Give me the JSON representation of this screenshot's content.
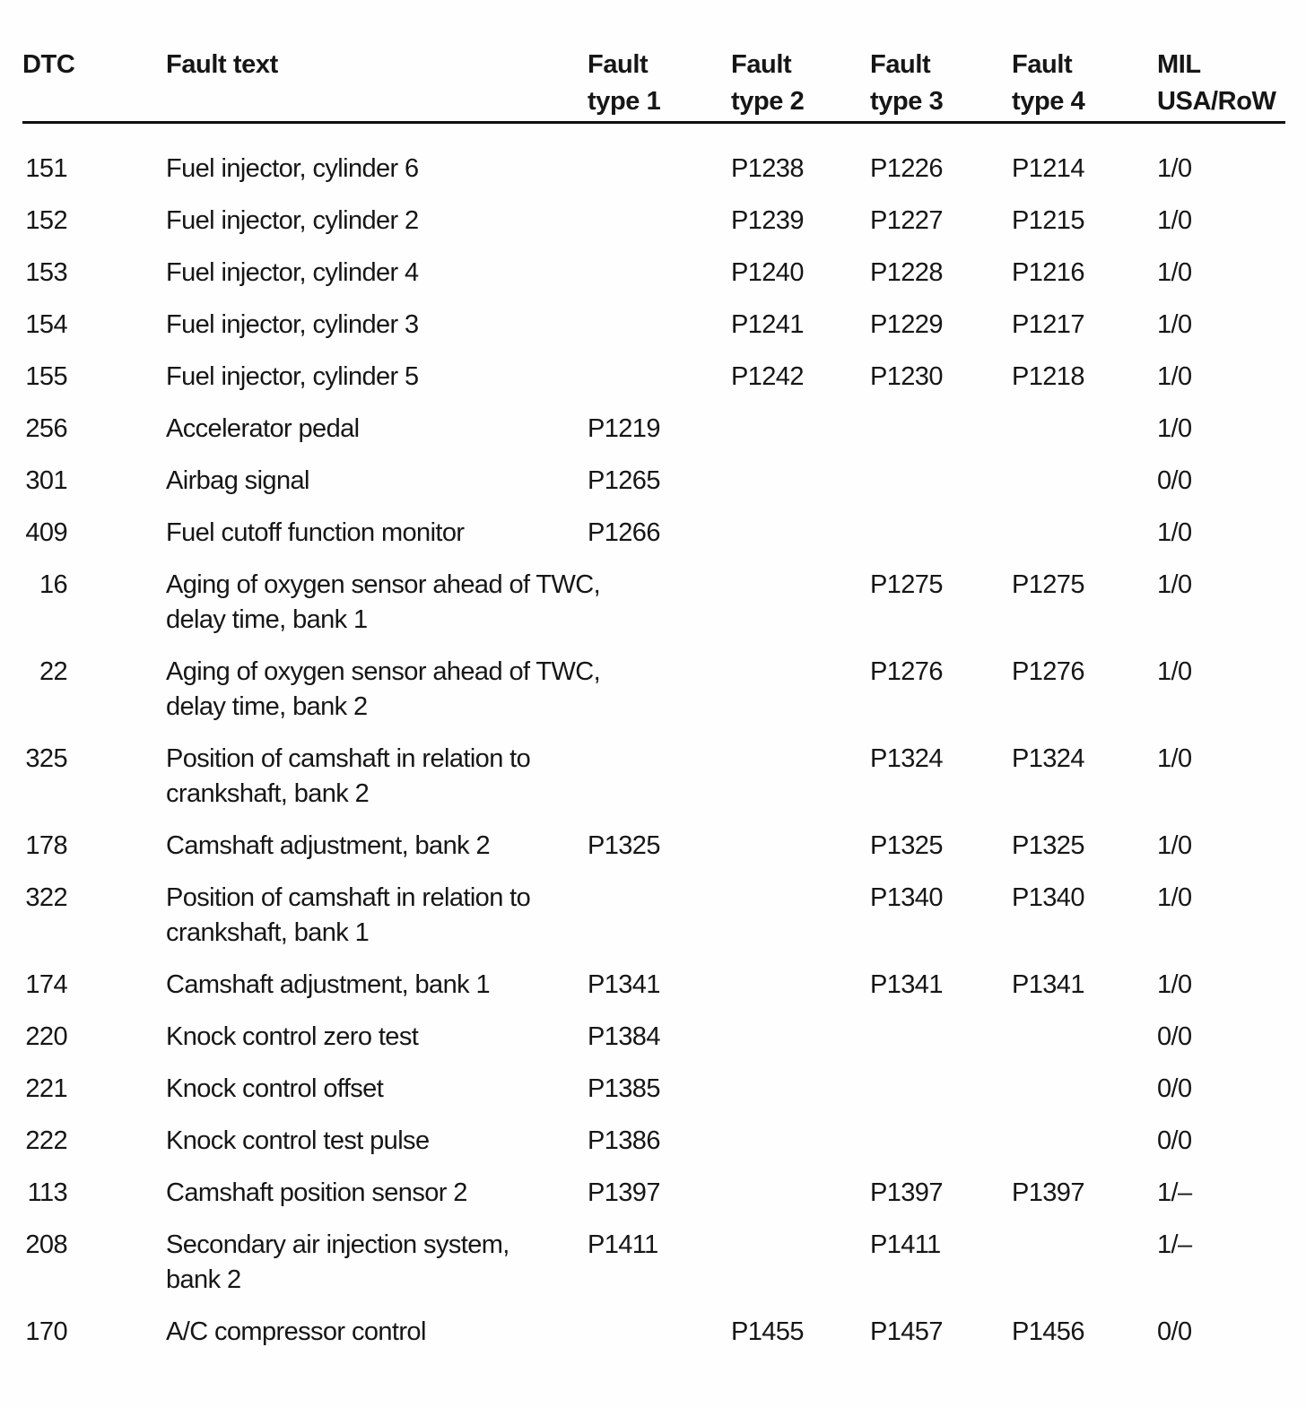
{
  "document": {
    "kind": "scanned-dtc-fault-code-table",
    "ink_color": "#161616",
    "paper_color": "#fefefe"
  },
  "table": {
    "columns": [
      {
        "id": "dtc",
        "label": [
          "DTC"
        ]
      },
      {
        "id": "text",
        "label": [
          "Fault text"
        ]
      },
      {
        "id": "type1",
        "label": [
          "Fault",
          "type 1"
        ]
      },
      {
        "id": "type2",
        "label": [
          "Fault",
          "type 2"
        ]
      },
      {
        "id": "type3",
        "label": [
          "Fault",
          "type 3"
        ]
      },
      {
        "id": "type4",
        "label": [
          "Fault",
          "type 4"
        ]
      },
      {
        "id": "mil",
        "label": [
          "MIL",
          "USA/RoW"
        ]
      }
    ],
    "rows": [
      {
        "dtc": "151",
        "text": [
          "Fuel injector, cylinder 6"
        ],
        "type1": "",
        "type2": "P1238",
        "type3": "P1226",
        "type4": "P1214",
        "mil": "1/0"
      },
      {
        "dtc": "152",
        "text": [
          "Fuel injector, cylinder 2"
        ],
        "type1": "",
        "type2": "P1239",
        "type3": "P1227",
        "type4": "P1215",
        "mil": "1/0"
      },
      {
        "dtc": "153",
        "text": [
          "Fuel injector, cylinder 4"
        ],
        "type1": "",
        "type2": "P1240",
        "type3": "P1228",
        "type4": "P1216",
        "mil": "1/0"
      },
      {
        "dtc": "154",
        "text": [
          "Fuel injector, cylinder 3"
        ],
        "type1": "",
        "type2": "P1241",
        "type3": "P1229",
        "type4": "P1217",
        "mil": "1/0"
      },
      {
        "dtc": "155",
        "text": [
          "Fuel injector, cylinder 5"
        ],
        "type1": "",
        "type2": "P1242",
        "type3": "P1230",
        "type4": "P1218",
        "mil": "1/0"
      },
      {
        "dtc": "256",
        "text": [
          "Accelerator pedal"
        ],
        "type1": "P1219",
        "type2": "",
        "type3": "",
        "type4": "",
        "mil": "1/0"
      },
      {
        "dtc": "301",
        "text": [
          "Airbag signal"
        ],
        "type1": "P1265",
        "type2": "",
        "type3": "",
        "type4": "",
        "mil": "0/0"
      },
      {
        "dtc": "409",
        "text": [
          "Fuel cutoff function monitor"
        ],
        "type1": "P1266",
        "type2": "",
        "type3": "",
        "type4": "",
        "mil": "1/0"
      },
      {
        "dtc": "16",
        "text": [
          "Aging of oxygen sensor ahead of TWC,",
          "delay time, bank 1"
        ],
        "type1": "",
        "type2": "",
        "type3": "P1275",
        "type4": "P1275",
        "mil": "1/0"
      },
      {
        "dtc": "22",
        "text": [
          "Aging of oxygen sensor ahead of TWC,",
          "delay time, bank 2"
        ],
        "type1": "",
        "type2": "",
        "type3": "P1276",
        "type4": "P1276",
        "mil": "1/0"
      },
      {
        "dtc": "325",
        "text": [
          "Position of camshaft in relation to",
          "crankshaft, bank 2"
        ],
        "type1": "",
        "type2": "",
        "type3": "P1324",
        "type4": "P1324",
        "mil": "1/0"
      },
      {
        "dtc": "178",
        "text": [
          "Camshaft adjustment, bank 2"
        ],
        "type1": "P1325",
        "type2": "",
        "type3": "P1325",
        "type4": "P1325",
        "mil": "1/0"
      },
      {
        "dtc": "322",
        "text": [
          "Position of camshaft in relation to",
          "crankshaft, bank 1"
        ],
        "type1": "",
        "type2": "",
        "type3": "P1340",
        "type4": "P1340",
        "mil": "1/0"
      },
      {
        "dtc": "174",
        "text": [
          "Camshaft adjustment, bank 1"
        ],
        "type1": "P1341",
        "type2": "",
        "type3": "P1341",
        "type4": "P1341",
        "mil": "1/0"
      },
      {
        "dtc": "220",
        "text": [
          "Knock control zero test"
        ],
        "type1": "P1384",
        "type2": "",
        "type3": "",
        "type4": "",
        "mil": "0/0"
      },
      {
        "dtc": "221",
        "text": [
          "Knock control offset"
        ],
        "type1": "P1385",
        "type2": "",
        "type3": "",
        "type4": "",
        "mil": "0/0"
      },
      {
        "dtc": "222",
        "text": [
          "Knock control test pulse"
        ],
        "type1": "P1386",
        "type2": "",
        "type3": "",
        "type4": "",
        "mil": "0/0"
      },
      {
        "dtc": "113",
        "text": [
          "Camshaft position sensor 2"
        ],
        "type1": "P1397",
        "type2": "",
        "type3": "P1397",
        "type4": "P1397",
        "mil": "1/–"
      },
      {
        "dtc": "208",
        "text": [
          "Secondary air injection system,",
          "bank 2"
        ],
        "type1": "P1411",
        "type2": "",
        "type3": "P1411",
        "type4": "",
        "mil": "1/–"
      },
      {
        "dtc": "170",
        "text": [
          "A/C compressor control"
        ],
        "type1": "",
        "type2": "P1455",
        "type3": "P1457",
        "type4": "P1456",
        "mil": "0/0"
      }
    ]
  }
}
